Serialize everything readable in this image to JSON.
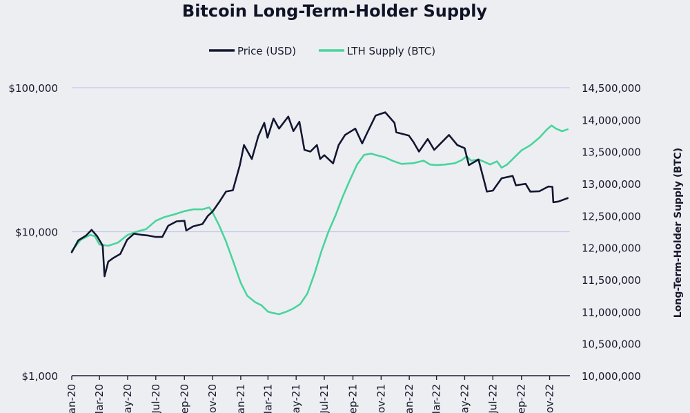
{
  "chart_data": {
    "type": "line",
    "title": "Bitcoin Long-Term-Holder Supply",
    "ylabel_left": "",
    "ylabel_right": "Long-Term-Holder Supply (BTC)",
    "grid": true,
    "legend_position": "top-center",
    "left_axis": {
      "scale": "log",
      "range": [
        1000,
        100000
      ],
      "ticks": [
        {
          "value": 1000,
          "label": "$1,000"
        },
        {
          "value": 10000,
          "label": "$10,000"
        },
        {
          "value": 100000,
          "label": "$100,000"
        }
      ]
    },
    "right_axis": {
      "scale": "linear",
      "range": [
        10000000,
        14500000
      ],
      "ticks": [
        {
          "value": 10000000,
          "label": "10,000,000"
        },
        {
          "value": 10500000,
          "label": "10,500,000"
        },
        {
          "value": 11000000,
          "label": "11,000,000"
        },
        {
          "value": 11500000,
          "label": "11,500,000"
        },
        {
          "value": 12000000,
          "label": "12,000,000"
        },
        {
          "value": 12500000,
          "label": "12,500,000"
        },
        {
          "value": 13000000,
          "label": "13,000,000"
        },
        {
          "value": 13500000,
          "label": "13,500,000"
        },
        {
          "value": 14000000,
          "label": "14,000,000"
        },
        {
          "value": 14500000,
          "label": "14,500,000"
        }
      ]
    },
    "x_axis": {
      "range": [
        "2020-01-01",
        "2022-12-15"
      ],
      "ticks": [
        {
          "date": "2020-01-01",
          "label": "Jan-20"
        },
        {
          "date": "2020-03-01",
          "label": "Mar-20"
        },
        {
          "date": "2020-05-01",
          "label": "May-20"
        },
        {
          "date": "2020-07-01",
          "label": "Jul-20"
        },
        {
          "date": "2020-09-01",
          "label": "Sep-20"
        },
        {
          "date": "2020-11-01",
          "label": "Nov-20"
        },
        {
          "date": "2021-01-01",
          "label": "Jan-21"
        },
        {
          "date": "2021-03-01",
          "label": "Mar-21"
        },
        {
          "date": "2021-05-01",
          "label": "May-21"
        },
        {
          "date": "2021-07-01",
          "label": "Jul-21"
        },
        {
          "date": "2021-09-01",
          "label": "Sep-21"
        },
        {
          "date": "2021-11-01",
          "label": "Nov-21"
        },
        {
          "date": "2022-01-01",
          "label": "Jan-22"
        },
        {
          "date": "2022-03-01",
          "label": "Mar-22"
        },
        {
          "date": "2022-05-01",
          "label": "May-22"
        },
        {
          "date": "2022-07-01",
          "label": "Jul-22"
        },
        {
          "date": "2022-09-01",
          "label": "Sep-22"
        },
        {
          "date": "2022-11-01",
          "label": "Nov-22"
        }
      ]
    },
    "series": [
      {
        "name": "Price (USD)",
        "axis": "left",
        "color": "#131630",
        "points": [
          [
            "2020-01-01",
            7200
          ],
          [
            "2020-01-15",
            8700
          ],
          [
            "2020-02-01",
            9400
          ],
          [
            "2020-02-13",
            10300
          ],
          [
            "2020-02-25",
            9300
          ],
          [
            "2020-03-08",
            8000
          ],
          [
            "2020-03-12",
            4900
          ],
          [
            "2020-03-20",
            6200
          ],
          [
            "2020-04-01",
            6600
          ],
          [
            "2020-04-15",
            7000
          ],
          [
            "2020-04-30",
            8800
          ],
          [
            "2020-05-15",
            9700
          ],
          [
            "2020-06-01",
            9500
          ],
          [
            "2020-06-15",
            9400
          ],
          [
            "2020-07-01",
            9200
          ],
          [
            "2020-07-15",
            9200
          ],
          [
            "2020-07-28",
            11000
          ],
          [
            "2020-08-15",
            11800
          ],
          [
            "2020-09-01",
            11900
          ],
          [
            "2020-09-05",
            10200
          ],
          [
            "2020-09-20",
            10900
          ],
          [
            "2020-10-10",
            11300
          ],
          [
            "2020-10-22",
            12900
          ],
          [
            "2020-11-01",
            13800
          ],
          [
            "2020-11-15",
            16000
          ],
          [
            "2020-11-30",
            19000
          ],
          [
            "2020-12-15",
            19400
          ],
          [
            "2020-12-30",
            29000
          ],
          [
            "2021-01-08",
            40000
          ],
          [
            "2021-01-25",
            32000
          ],
          [
            "2021-02-08",
            46000
          ],
          [
            "2021-02-21",
            57000
          ],
          [
            "2021-02-28",
            45000
          ],
          [
            "2021-03-13",
            61000
          ],
          [
            "2021-03-25",
            52000
          ],
          [
            "2021-04-14",
            63000
          ],
          [
            "2021-04-25",
            50000
          ],
          [
            "2021-05-08",
            58000
          ],
          [
            "2021-05-19",
            37000
          ],
          [
            "2021-06-01",
            36000
          ],
          [
            "2021-06-15",
            40000
          ],
          [
            "2021-06-22",
            32000
          ],
          [
            "2021-07-01",
            34000
          ],
          [
            "2021-07-20",
            29800
          ],
          [
            "2021-08-01",
            40000
          ],
          [
            "2021-08-15",
            47000
          ],
          [
            "2021-09-06",
            52000
          ],
          [
            "2021-09-21",
            41000
          ],
          [
            "2021-10-01",
            48000
          ],
          [
            "2021-10-20",
            64000
          ],
          [
            "2021-11-10",
            67500
          ],
          [
            "2021-11-30",
            57000
          ],
          [
            "2021-12-04",
            49000
          ],
          [
            "2021-12-31",
            46500
          ],
          [
            "2022-01-10",
            42000
          ],
          [
            "2022-01-22",
            36000
          ],
          [
            "2022-02-10",
            44000
          ],
          [
            "2022-02-24",
            37000
          ],
          [
            "2022-03-28",
            47000
          ],
          [
            "2022-04-15",
            40000
          ],
          [
            "2022-05-01",
            38000
          ],
          [
            "2022-05-10",
            29000
          ],
          [
            "2022-05-31",
            31700
          ],
          [
            "2022-06-13",
            22000
          ],
          [
            "2022-06-18",
            19000
          ],
          [
            "2022-07-01",
            19300
          ],
          [
            "2022-07-20",
            23500
          ],
          [
            "2022-08-13",
            24400
          ],
          [
            "2022-08-20",
            21000
          ],
          [
            "2022-09-10",
            21500
          ],
          [
            "2022-09-20",
            19000
          ],
          [
            "2022-10-10",
            19100
          ],
          [
            "2022-10-29",
            20600
          ],
          [
            "2022-11-07",
            20500
          ],
          [
            "2022-11-09",
            16000
          ],
          [
            "2022-11-20",
            16200
          ],
          [
            "2022-12-10",
            17100
          ]
        ]
      },
      {
        "name": "LTH Supply (BTC)",
        "axis": "right",
        "color": "#49d49b",
        "points": [
          [
            "2020-01-01",
            11950000
          ],
          [
            "2020-01-20",
            12120000
          ],
          [
            "2020-02-10",
            12200000
          ],
          [
            "2020-02-20",
            12180000
          ],
          [
            "2020-03-01",
            12050000
          ],
          [
            "2020-03-20",
            12030000
          ],
          [
            "2020-04-10",
            12080000
          ],
          [
            "2020-05-01",
            12200000
          ],
          [
            "2020-05-20",
            12250000
          ],
          [
            "2020-06-10",
            12290000
          ],
          [
            "2020-07-01",
            12420000
          ],
          [
            "2020-07-20",
            12480000
          ],
          [
            "2020-08-10",
            12520000
          ],
          [
            "2020-09-01",
            12570000
          ],
          [
            "2020-09-20",
            12600000
          ],
          [
            "2020-10-10",
            12600000
          ],
          [
            "2020-10-25",
            12630000
          ],
          [
            "2020-11-01",
            12550000
          ],
          [
            "2020-11-15",
            12350000
          ],
          [
            "2020-11-30",
            12100000
          ],
          [
            "2020-12-15",
            11800000
          ],
          [
            "2021-01-01",
            11450000
          ],
          [
            "2021-01-15",
            11250000
          ],
          [
            "2021-02-01",
            11150000
          ],
          [
            "2021-02-15",
            11100000
          ],
          [
            "2021-03-01",
            11000000
          ],
          [
            "2021-03-12",
            10980000
          ],
          [
            "2021-03-25",
            10960000
          ],
          [
            "2021-04-10",
            11000000
          ],
          [
            "2021-04-25",
            11050000
          ],
          [
            "2021-05-10",
            11120000
          ],
          [
            "2021-05-25",
            11280000
          ],
          [
            "2021-06-10",
            11600000
          ],
          [
            "2021-06-25",
            11950000
          ],
          [
            "2021-07-10",
            12250000
          ],
          [
            "2021-07-25",
            12500000
          ],
          [
            "2021-08-10",
            12800000
          ],
          [
            "2021-08-25",
            13050000
          ],
          [
            "2021-09-10",
            13300000
          ],
          [
            "2021-09-25",
            13450000
          ],
          [
            "2021-10-10",
            13470000
          ],
          [
            "2021-10-25",
            13440000
          ],
          [
            "2021-11-10",
            13410000
          ],
          [
            "2021-11-25",
            13360000
          ],
          [
            "2021-12-15",
            13310000
          ],
          [
            "2022-01-10",
            13320000
          ],
          [
            "2022-02-01",
            13360000
          ],
          [
            "2022-02-15",
            13300000
          ],
          [
            "2022-03-01",
            13290000
          ],
          [
            "2022-03-20",
            13300000
          ],
          [
            "2022-04-10",
            13320000
          ],
          [
            "2022-04-25",
            13370000
          ],
          [
            "2022-05-05",
            13430000
          ],
          [
            "2022-05-15",
            13360000
          ],
          [
            "2022-05-31",
            13380000
          ],
          [
            "2022-06-10",
            13350000
          ],
          [
            "2022-06-25",
            13300000
          ],
          [
            "2022-07-10",
            13350000
          ],
          [
            "2022-07-20",
            13250000
          ],
          [
            "2022-08-01",
            13300000
          ],
          [
            "2022-08-15",
            13400000
          ],
          [
            "2022-09-01",
            13520000
          ],
          [
            "2022-09-20",
            13600000
          ],
          [
            "2022-10-10",
            13720000
          ],
          [
            "2022-10-25",
            13840000
          ],
          [
            "2022-11-05",
            13910000
          ],
          [
            "2022-11-15",
            13860000
          ],
          [
            "2022-11-28",
            13820000
          ],
          [
            "2022-12-10",
            13850000
          ]
        ]
      }
    ]
  }
}
